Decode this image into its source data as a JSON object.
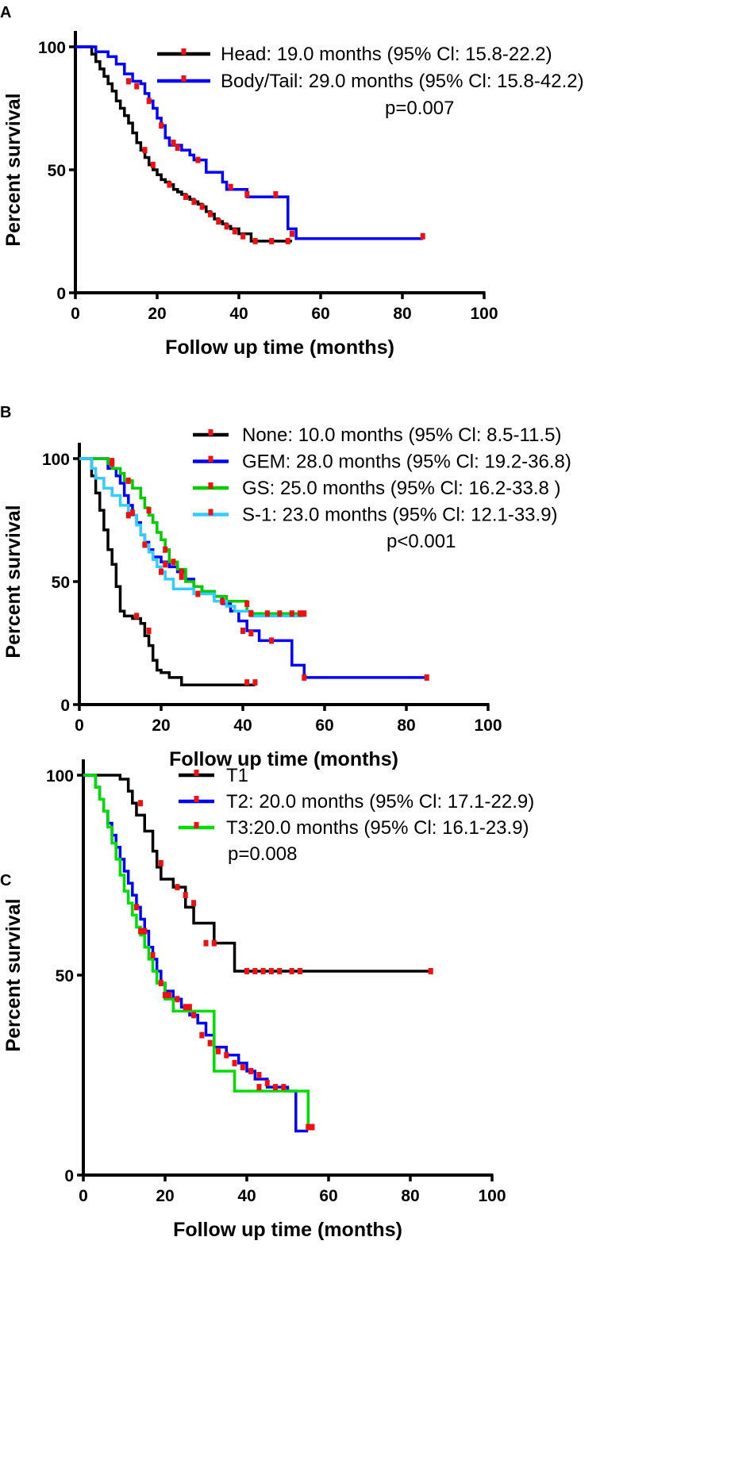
{
  "chart_data": [
    {
      "panel": "A",
      "type": "line",
      "step": true,
      "xlabel": "Follow up time (months)",
      "ylabel": "Percent survival",
      "xlim": [
        0,
        100
      ],
      "ylim": [
        0,
        100
      ],
      "xticks": [
        0,
        20,
        40,
        60,
        80,
        100
      ],
      "yticks": [
        0,
        50,
        100
      ],
      "pvalue": "p=0.007",
      "series": [
        {
          "name": "Head",
          "legend": "Head: 19.0 months (95% Cl: 15.8-22.2)",
          "color": "#000000",
          "x": [
            0,
            4,
            5,
            6,
            7,
            8,
            9,
            10,
            11,
            12,
            13,
            14,
            15,
            16,
            17,
            18,
            19,
            20,
            21,
            22,
            23,
            24,
            25,
            26,
            27,
            28,
            29,
            30,
            31,
            32,
            33,
            34,
            35,
            36,
            37,
            38,
            40,
            43,
            53
          ],
          "y": [
            100,
            97,
            94,
            91,
            88,
            85,
            82,
            78,
            75,
            72,
            69,
            65,
            61,
            58,
            55,
            52,
            50,
            48,
            46,
            45,
            44,
            42,
            41,
            40,
            39,
            38,
            37,
            36,
            35,
            33,
            32,
            30,
            29,
            28,
            27,
            26,
            24,
            21,
            21
          ],
          "censored": [
            [
              17,
              58
            ],
            [
              19,
              52
            ],
            [
              23,
              44
            ],
            [
              27,
              39
            ],
            [
              29,
              37
            ],
            [
              31,
              35
            ],
            [
              33,
              32
            ],
            [
              35,
              29
            ],
            [
              37,
              27
            ],
            [
              39,
              25
            ],
            [
              41,
              23
            ],
            [
              44,
              21
            ],
            [
              48,
              21
            ],
            [
              52,
              21
            ]
          ]
        },
        {
          "name": "Body/Tail",
          "legend": "Body/Tail: 29.0 months (95% Cl: 15.8-42.2)",
          "color": "#0000ff",
          "x": [
            0,
            5,
            8,
            10,
            12,
            14,
            16,
            17,
            18,
            19,
            20,
            21,
            22,
            23,
            26,
            28,
            29,
            32,
            36,
            37,
            42,
            52,
            54,
            85
          ],
          "y": [
            100,
            98,
            96,
            93,
            89,
            86,
            85,
            81,
            78,
            75,
            71,
            68,
            63,
            60,
            58,
            56,
            54,
            49,
            45,
            42,
            39,
            26,
            22,
            22
          ],
          "censored": [
            [
              13,
              86
            ],
            [
              15,
              84
            ],
            [
              18,
              78
            ],
            [
              21,
              68
            ],
            [
              24,
              61
            ],
            [
              25,
              59
            ],
            [
              30,
              54
            ],
            [
              38,
              43
            ],
            [
              42,
              40
            ],
            [
              49,
              40
            ],
            [
              53,
              24
            ],
            [
              85,
              23
            ]
          ]
        }
      ]
    },
    {
      "panel": "B",
      "type": "line",
      "step": true,
      "xlabel": "Follow up time (months)",
      "ylabel": "Percent survival",
      "xlim": [
        0,
        100
      ],
      "ylim": [
        0,
        100
      ],
      "xticks": [
        0,
        20,
        40,
        60,
        80,
        100
      ],
      "yticks": [
        0,
        50,
        100
      ],
      "pvalue": "p<0.001",
      "series": [
        {
          "name": "None",
          "legend": "None: 10.0 months (95% Cl: 8.5-11.5)",
          "color": "#000000",
          "x": [
            0,
            3,
            4,
            5,
            6,
            7,
            8,
            9,
            10,
            11,
            13,
            15,
            16,
            17,
            18,
            19,
            20,
            22,
            25,
            43
          ],
          "y": [
            100,
            93,
            86,
            79,
            71,
            63,
            57,
            48,
            38,
            36,
            35,
            33,
            28,
            24,
            18,
            14,
            13,
            11,
            8,
            8
          ],
          "censored": [
            [
              14,
              36
            ],
            [
              17,
              30
            ],
            [
              41,
              9
            ],
            [
              43,
              9
            ]
          ]
        },
        {
          "name": "GEM",
          "legend": "GEM: 28.0 months (95% Cl: 19.2-36.8)",
          "color": "#0000ff",
          "x": [
            0,
            7,
            9,
            10,
            11,
            12,
            13,
            14,
            15,
            16,
            17,
            18,
            20,
            22,
            24,
            26,
            28,
            30,
            33,
            35,
            37,
            39,
            41,
            44,
            52,
            55,
            85
          ],
          "y": [
            100,
            96,
            93,
            90,
            85,
            81,
            77,
            74,
            69,
            66,
            63,
            60,
            58,
            56,
            54,
            51,
            48,
            46,
            44,
            41,
            38,
            34,
            30,
            26,
            16,
            11,
            11
          ],
          "censored": [
            [
              8,
              99
            ],
            [
              13,
              78
            ],
            [
              21,
              57
            ],
            [
              25,
              52
            ],
            [
              35,
              42
            ],
            [
              40,
              30
            ],
            [
              42,
              29
            ],
            [
              47,
              26
            ],
            [
              55,
              11
            ],
            [
              85,
              11
            ]
          ]
        },
        {
          "name": "GS",
          "legend": "GS: 25.0 months (95% Cl: 16.2-33.8 )",
          "color": "#00cc00",
          "x": [
            0,
            7,
            8,
            10,
            11,
            13,
            15,
            16,
            17,
            18,
            19,
            20,
            21,
            22,
            24,
            26,
            28,
            30,
            33,
            36,
            41,
            42,
            55
          ],
          "y": [
            100,
            98,
            96,
            94,
            91,
            88,
            84,
            80,
            77,
            74,
            70,
            67,
            63,
            58,
            55,
            50,
            48,
            46,
            44,
            42,
            38,
            37,
            37
          ],
          "censored": [
            [
              8,
              98
            ],
            [
              12,
              91
            ],
            [
              17,
              79
            ],
            [
              21,
              63
            ],
            [
              23,
              58
            ],
            [
              25,
              54
            ],
            [
              41,
              41
            ],
            [
              42,
              37
            ],
            [
              46,
              37
            ],
            [
              49,
              37
            ],
            [
              52,
              37
            ],
            [
              54,
              37
            ],
            [
              55,
              37
            ]
          ]
        },
        {
          "name": "S-1",
          "legend": "S-1: 23.0 months (95% Cl: 12.1-33.9)",
          "color": "#33ccff",
          "x": [
            0,
            3,
            4,
            6,
            8,
            10,
            12,
            14,
            15,
            16,
            17,
            18,
            19,
            20,
            21,
            23,
            26,
            28,
            30,
            33,
            36,
            38,
            42,
            55
          ],
          "y": [
            100,
            96,
            92,
            88,
            85,
            81,
            77,
            73,
            69,
            65,
            62,
            59,
            56,
            54,
            51,
            47,
            47,
            45,
            45,
            42,
            40,
            38,
            36,
            36
          ],
          "censored": [
            [
              12,
              77
            ],
            [
              16,
              65
            ],
            [
              20,
              54
            ],
            [
              29,
              45
            ],
            [
              42,
              37
            ]
          ]
        }
      ]
    },
    {
      "panel": "C",
      "type": "line",
      "step": true,
      "xlabel": "Follow up time (months)",
      "ylabel": "Percent survival",
      "xlim": [
        0,
        100
      ],
      "ylim": [
        0,
        100
      ],
      "xticks": [
        0,
        20,
        40,
        60,
        80,
        100
      ],
      "yticks": [
        0,
        50,
        100
      ],
      "pvalue": "p=0.008",
      "series": [
        {
          "name": "T1",
          "legend": "T1",
          "color": "#000000",
          "x": [
            0,
            9,
            11,
            12,
            13,
            15,
            17,
            18,
            19,
            22,
            25,
            27,
            32,
            37,
            85
          ],
          "y": [
            100,
            99,
            96,
            93,
            90,
            86,
            81,
            77,
            74,
            72,
            67,
            63,
            58,
            51,
            51
          ],
          "censored": [
            [
              14,
              93
            ],
            [
              19,
              78
            ],
            [
              23,
              72
            ],
            [
              25,
              70
            ],
            [
              27,
              68
            ],
            [
              30,
              58
            ],
            [
              32,
              58
            ],
            [
              40,
              51
            ],
            [
              42,
              51
            ],
            [
              44,
              51
            ],
            [
              46,
              51
            ],
            [
              48,
              51
            ],
            [
              51,
              51
            ],
            [
              53,
              51
            ],
            [
              85,
              51
            ]
          ]
        },
        {
          "name": "T2",
          "legend": "T2: 20.0 months (95% Cl: 17.1-22.9)",
          "color": "#0000ff",
          "x": [
            0,
            3,
            4,
            5,
            6,
            7,
            8,
            9,
            10,
            11,
            12,
            13,
            14,
            15,
            16,
            17,
            18,
            19,
            20,
            22,
            24,
            26,
            28,
            30,
            32,
            35,
            38,
            40,
            42,
            45,
            50,
            52,
            55
          ],
          "y": [
            100,
            97,
            94,
            91,
            88,
            85,
            82,
            79,
            76,
            73,
            70,
            67,
            64,
            61,
            57,
            54,
            51,
            48,
            46,
            44,
            42,
            40,
            38,
            35,
            32,
            30,
            28,
            26,
            24,
            22,
            21,
            11,
            11
          ],
          "censored": [
            [
              13,
              67
            ],
            [
              15,
              61
            ],
            [
              17,
              55
            ],
            [
              19,
              48
            ],
            [
              21,
              45
            ],
            [
              23,
              44
            ],
            [
              25,
              42
            ],
            [
              27,
              40
            ],
            [
              29,
              35
            ],
            [
              31,
              33
            ],
            [
              33,
              31
            ],
            [
              35,
              30
            ],
            [
              37,
              28
            ],
            [
              39,
              27
            ],
            [
              41,
              26
            ],
            [
              43,
              25
            ],
            [
              45,
              23
            ],
            [
              47,
              22
            ],
            [
              49,
              22
            ],
            [
              55,
              12
            ],
            [
              56,
              12
            ]
          ]
        },
        {
          "name": "T3",
          "legend": "T3:20.0 months (95% Cl: 16.1-23.9)",
          "color": "#00dd00",
          "x": [
            0,
            3,
            4,
            5,
            6,
            7,
            8,
            9,
            10,
            11,
            12,
            13,
            14,
            15,
            16,
            17,
            18,
            20,
            22,
            26,
            32,
            37,
            55
          ],
          "y": [
            100,
            97,
            94,
            91,
            87,
            83,
            79,
            75,
            71,
            68,
            65,
            62,
            60,
            57,
            54,
            51,
            48,
            44,
            41,
            41,
            26,
            21,
            12
          ],
          "censored": [
            [
              14,
              61
            ],
            [
              20,
              45
            ],
            [
              26,
              42
            ],
            [
              43,
              22
            ],
            [
              56,
              12
            ]
          ]
        }
      ]
    }
  ]
}
